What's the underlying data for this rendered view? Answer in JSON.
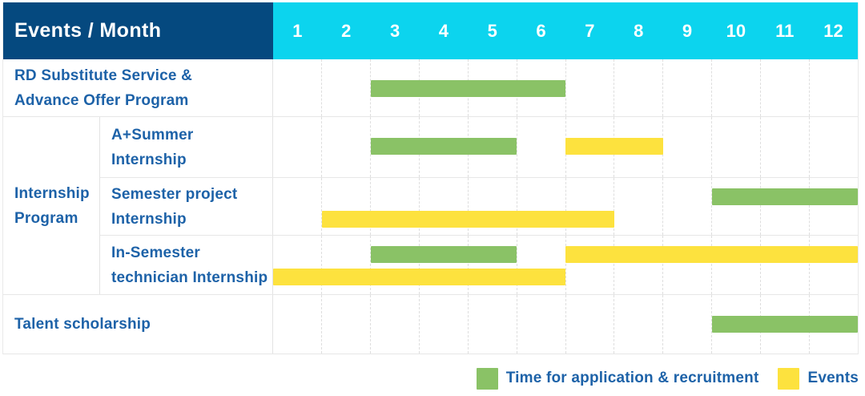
{
  "colors": {
    "header_bg": "#05497f",
    "months_bg": "#0cd4ee",
    "application": "#8ac266",
    "event": "#fde23e",
    "label_text": "#1d62a8"
  },
  "header": {
    "label": "Events / Month",
    "months": [
      "1",
      "2",
      "3",
      "4",
      "5",
      "6",
      "7",
      "8",
      "9",
      "10",
      "11",
      "12"
    ]
  },
  "group": {
    "lines": [
      "Internship",
      "Program"
    ]
  },
  "rows": [
    {
      "lines": [
        "RD Substitute Service &",
        "Advance Offer Program"
      ]
    },
    {
      "lines": [
        "A+Summer",
        "Internship"
      ]
    },
    {
      "lines": [
        "Semester project",
        "Internship"
      ]
    },
    {
      "lines": [
        "In-Semester",
        "technician Internship"
      ]
    },
    {
      "lines": [
        "Talent scholarship"
      ]
    }
  ],
  "legend": [
    {
      "kind": "application",
      "label": "Time for application & recruitment"
    },
    {
      "kind": "event",
      "label": "Events"
    }
  ],
  "chart_data": {
    "type": "gantt",
    "x_unit": "month",
    "x_range": [
      1,
      12
    ],
    "legend": {
      "application": "Time for application & recruitment",
      "event": "Events"
    },
    "tasks": [
      {
        "name": "RD Substitute Service & Advance Offer Program",
        "bars": [
          {
            "kind": "application",
            "start_month": 3,
            "end_month": 6,
            "lane": "single"
          }
        ]
      },
      {
        "name": "A+Summer Internship",
        "group": "Internship Program",
        "bars": [
          {
            "kind": "application",
            "start_month": 3,
            "end_month": 5,
            "lane": "single"
          },
          {
            "kind": "event",
            "start_month": 7,
            "end_month": 8,
            "lane": "single"
          }
        ]
      },
      {
        "name": "Semester project Internship",
        "group": "Internship Program",
        "bars": [
          {
            "kind": "application",
            "start_month": 10,
            "end_month": 12,
            "lane": "top"
          },
          {
            "kind": "event",
            "start_month": 2,
            "end_month": 7,
            "lane": "bottom"
          }
        ]
      },
      {
        "name": "In-Semester technician Internship",
        "group": "Internship Program",
        "bars": [
          {
            "kind": "application",
            "start_month": 3,
            "end_month": 5,
            "lane": "top"
          },
          {
            "kind": "event",
            "start_month": 7,
            "end_month": 12,
            "lane": "top"
          },
          {
            "kind": "event",
            "start_month": 1,
            "end_month": 6,
            "lane": "bottom"
          }
        ]
      },
      {
        "name": "Talent scholarship",
        "bars": [
          {
            "kind": "application",
            "start_month": 10,
            "end_month": 12,
            "lane": "single"
          }
        ]
      }
    ]
  }
}
